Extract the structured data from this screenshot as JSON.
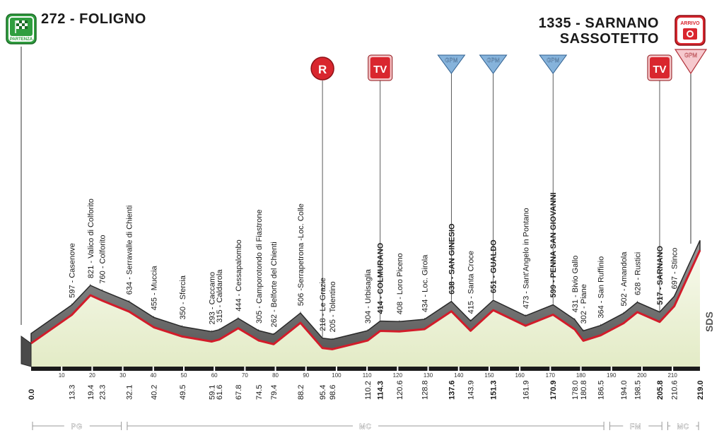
{
  "header": {
    "start": "272 - FOLIGNO",
    "start_badge": "PARTENZA",
    "finish_line1": "1335 - SARNANO",
    "finish_line2": "SASSOTETTO",
    "finish_badge": "ARRIVO",
    "finish_gpm": "GPM"
  },
  "markers": [
    {
      "type": "R",
      "label": "R",
      "km": 95.4
    },
    {
      "type": "TV",
      "label": "TV",
      "km": 114.3
    },
    {
      "type": "GPM",
      "label": "GPM",
      "km": 137.6
    },
    {
      "type": "GPM",
      "label": "GPM",
      "km": 151.3
    },
    {
      "type": "GPM",
      "label": "GPM",
      "km": 170.9
    },
    {
      "type": "TV",
      "label": "TV",
      "km": 205.8
    }
  ],
  "regions": [
    {
      "label": "PG",
      "from": 0,
      "to": 30
    },
    {
      "label": "MC",
      "from": 31,
      "to": 188
    },
    {
      "label": "FM",
      "from": 189,
      "to": 207
    },
    {
      "label": "MC",
      "from": 208,
      "to": 219
    }
  ],
  "logo": "SDS",
  "colors": {
    "profile_fill": "#8a8a8a",
    "profile_dark": "#2a2a2a",
    "road": "#d21c2a",
    "base": "#eef2da",
    "marker_red": "#d9262e",
    "gpm_blue": "#86b3db"
  },
  "chart_data": {
    "type": "area",
    "xlim": [
      0,
      219
    ],
    "x_ticks": [
      10,
      20,
      30,
      40,
      50,
      60,
      70,
      80,
      90,
      100,
      110,
      120,
      130,
      140,
      150,
      160,
      170,
      180,
      190,
      200,
      210
    ],
    "waypoints": [
      {
        "km": 0.0,
        "alt": 272,
        "name": "",
        "bold_km": true
      },
      {
        "km": 13.3,
        "alt": 597,
        "name": "597 - Casenove"
      },
      {
        "km": 19.4,
        "alt": 821,
        "name": "821 - Valico di Colforito"
      },
      {
        "km": 23.3,
        "alt": 760,
        "name": "760 - Colforito"
      },
      {
        "km": 32.1,
        "alt": 634,
        "name": "634 - Serravalle di Chienti"
      },
      {
        "km": 40.2,
        "alt": 455,
        "name": "455 - Muccia"
      },
      {
        "km": 49.5,
        "alt": 350,
        "name": "350 - Sfercia"
      },
      {
        "km": 59.1,
        "alt": 293,
        "name": "293 - Caccamo"
      },
      {
        "km": 61.6,
        "alt": 315,
        "name": "315 - Caldarola"
      },
      {
        "km": 67.8,
        "alt": 444,
        "name": "444 - Cessapalombo"
      },
      {
        "km": 74.5,
        "alt": 305,
        "name": "305 - Camporotondo di Fiastrone"
      },
      {
        "km": 79.4,
        "alt": 262,
        "name": "262 - Belforte del Chienti"
      },
      {
        "km": 88.2,
        "alt": 506,
        "name": "506 -Serrapetrona -Loc. Colle"
      },
      {
        "km": 95.4,
        "alt": 218,
        "name": "218 - Le Grazie"
      },
      {
        "km": 98.6,
        "alt": 205,
        "name": "205 - Tolentino"
      },
      {
        "km": 110.2,
        "alt": 304,
        "name": "304 - Urbisaglia"
      },
      {
        "km": 114.3,
        "alt": 414,
        "name": "414 - COLMURANO",
        "bold": true
      },
      {
        "km": 120.6,
        "alt": 408,
        "name": "408 - Loro Piceno"
      },
      {
        "km": 128.8,
        "alt": 434,
        "name": "434 - Loc. Girola"
      },
      {
        "km": 137.6,
        "alt": 638,
        "name": "638 - SAN GINESIO",
        "bold": true
      },
      {
        "km": 143.9,
        "alt": 415,
        "name": "415 - Santa Croce"
      },
      {
        "km": 151.3,
        "alt": 651,
        "name": "651 - GUALDO",
        "bold": true
      },
      {
        "km": 161.9,
        "alt": 473,
        "name": "473 - Sant'Angelo in Pontano"
      },
      {
        "km": 170.9,
        "alt": 599,
        "name": "599 - PENNA SAN GIOVANNI",
        "bold": true
      },
      {
        "km": 178.0,
        "alt": 431,
        "name": "431 - Bivio Gallo"
      },
      {
        "km": 180.8,
        "alt": 302,
        "name": "302 - Piane"
      },
      {
        "km": 186.5,
        "alt": 364,
        "name": "364 - San Ruffinio"
      },
      {
        "km": 194.0,
        "alt": 502,
        "name": "502 - Amandola"
      },
      {
        "km": 198.5,
        "alt": 628,
        "name": "628 - Rustici"
      },
      {
        "km": 205.8,
        "alt": 517,
        "name": "517 - SARNANO",
        "bold": true
      },
      {
        "km": 210.6,
        "alt": 697,
        "name": "697 - Stinco"
      },
      {
        "km": 219.0,
        "alt": 1335,
        "name": "",
        "bold_km": true
      }
    ],
    "km_labels": [
      "0.0",
      "13.3",
      "19.4",
      "23.3",
      "32.1",
      "40.2",
      "49.5",
      "59.1",
      "61.6",
      "67.8",
      "74.5",
      "79.4",
      "88.2",
      "95.4",
      "98.6",
      "110.2",
      "114.3",
      "120.6",
      "128.8",
      "137.6",
      "143.9",
      "151.3",
      "161.9",
      "170.9",
      "178.0",
      "180.8",
      "186.5",
      "194.0",
      "198.5",
      "205.8",
      "210.6",
      "219.0"
    ]
  }
}
